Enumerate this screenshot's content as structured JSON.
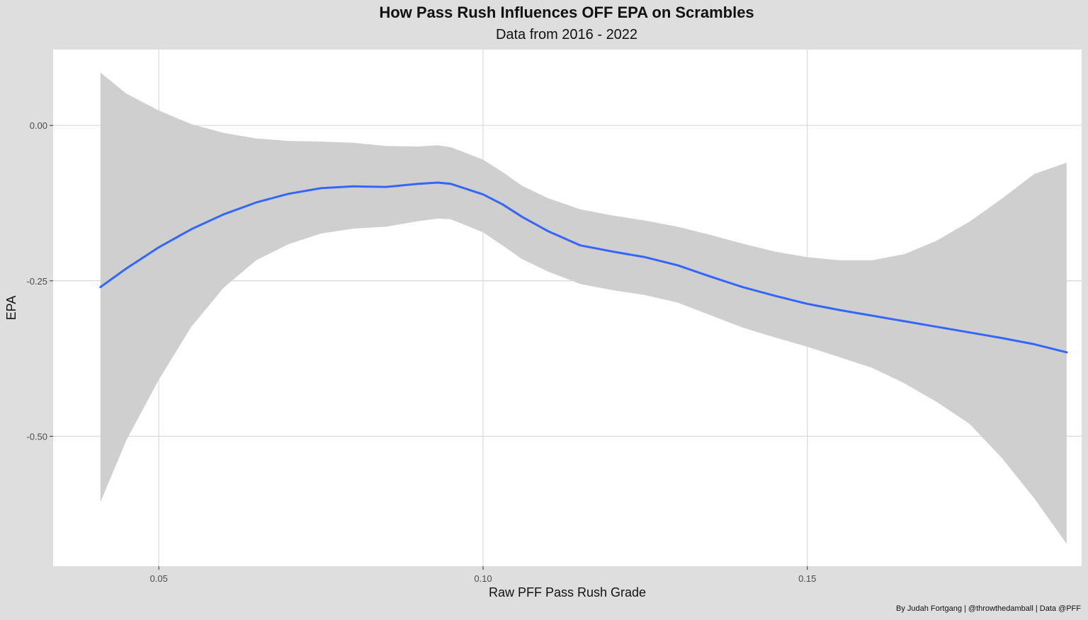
{
  "chart_data": {
    "type": "line",
    "title": "How Pass Rush Influences OFF EPA on Scrambles",
    "subtitle": "Data from 2016 - 2022",
    "xlabel": "Raw PFF Pass Rush Grade",
    "ylabel": "EPA",
    "caption": "By Judah Fortgang | @throwthedamball | Data @PFF",
    "xlim": [
      0.0337,
      0.1923
    ],
    "ylim": [
      -0.709,
      0.122
    ],
    "x_ticks": [
      0.05,
      0.1,
      0.15
    ],
    "x_tick_labels": [
      "0.05",
      "0.10",
      "0.15"
    ],
    "y_ticks": [
      0.0,
      -0.25,
      -0.5
    ],
    "y_tick_labels": [
      "0.00",
      "-0.25",
      "-0.50"
    ],
    "grid": true,
    "line_color": "#3366ff",
    "band_color": "#cfcfcf",
    "series": [
      {
        "x": [
          0.041,
          0.045,
          0.05,
          0.055,
          0.06,
          0.065,
          0.07,
          0.075,
          0.08,
          0.085,
          0.09,
          0.093,
          0.095,
          0.1,
          0.103,
          0.106,
          0.11,
          0.115,
          0.12,
          0.125,
          0.13,
          0.135,
          0.14,
          0.145,
          0.15,
          0.155,
          0.16,
          0.165,
          0.17,
          0.175,
          0.18,
          0.185,
          0.19
        ],
        "y": [
          -0.26,
          -0.23,
          -0.196,
          -0.167,
          -0.143,
          -0.124,
          -0.11,
          -0.101,
          -0.098,
          -0.099,
          -0.094,
          -0.092,
          -0.094,
          -0.111,
          -0.127,
          -0.147,
          -0.17,
          -0.193,
          -0.203,
          -0.212,
          -0.225,
          -0.243,
          -0.26,
          -0.274,
          -0.287,
          -0.297,
          -0.306,
          -0.315,
          -0.324,
          -0.333,
          -0.342,
          -0.352,
          -0.365
        ],
        "lower": [
          -0.606,
          -0.506,
          -0.409,
          -0.324,
          -0.261,
          -0.217,
          -0.191,
          -0.174,
          -0.166,
          -0.163,
          -0.154,
          -0.15,
          -0.151,
          -0.172,
          -0.193,
          -0.215,
          -0.235,
          -0.255,
          -0.265,
          -0.273,
          -0.285,
          -0.305,
          -0.325,
          -0.341,
          -0.356,
          -0.373,
          -0.39,
          -0.415,
          -0.445,
          -0.48,
          -0.535,
          -0.6,
          -0.673
        ],
        "upper": [
          0.085,
          0.051,
          0.024,
          0.002,
          -0.012,
          -0.021,
          -0.025,
          -0.026,
          -0.028,
          -0.033,
          -0.034,
          -0.032,
          -0.035,
          -0.055,
          -0.075,
          -0.097,
          -0.117,
          -0.135,
          -0.145,
          -0.153,
          -0.163,
          -0.176,
          -0.19,
          -0.203,
          -0.212,
          -0.217,
          -0.217,
          -0.207,
          -0.185,
          -0.155,
          -0.118,
          -0.078,
          -0.06
        ]
      }
    ]
  }
}
